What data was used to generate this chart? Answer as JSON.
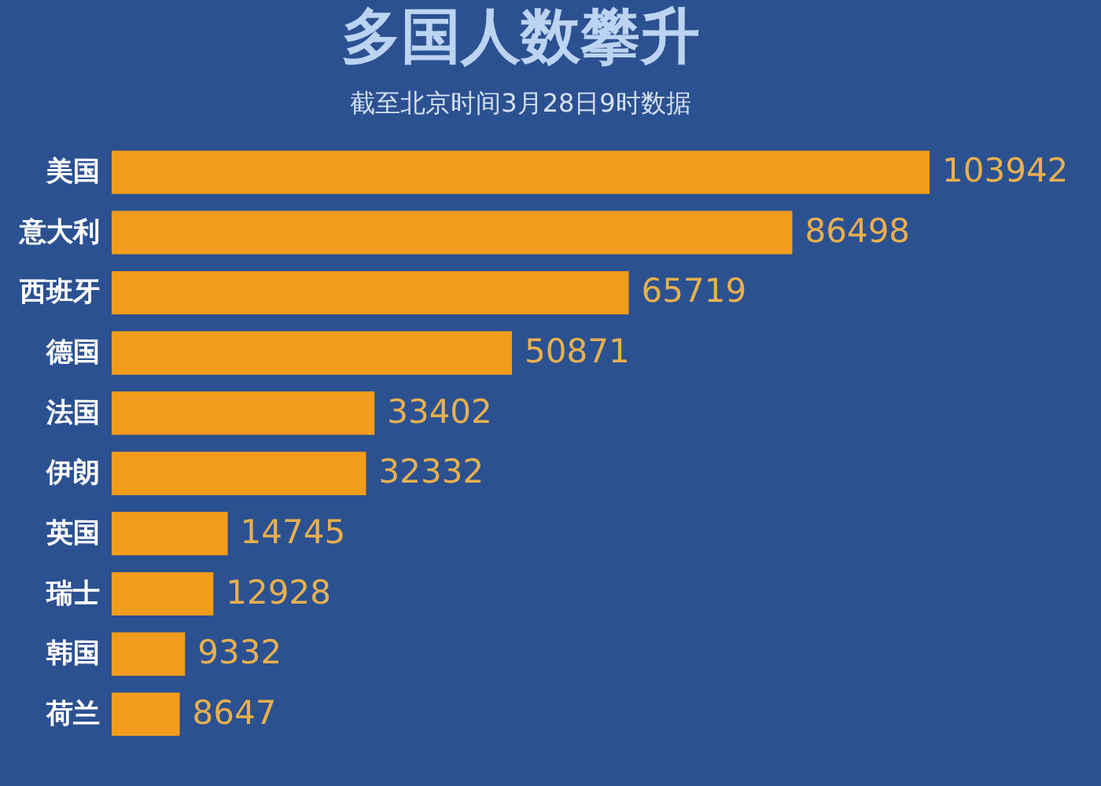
{
  "chart_data": {
    "type": "bar",
    "orientation": "horizontal",
    "title": "多国人数攀升",
    "subtitle": "截至北京时间3月28日9时数据",
    "categories": [
      "美国",
      "意大利",
      "西班牙",
      "德国",
      "法国",
      "伊朗",
      "英国",
      "瑞士",
      "韩国",
      "荷兰"
    ],
    "series": [
      {
        "color": "#f29c1b",
        "values": [
          103942,
          86498,
          65719,
          50871,
          33402,
          32332,
          14745,
          12928,
          9332,
          8647
        ]
      }
    ],
    "data_labels": true,
    "tick_labels": "y"
  }
}
